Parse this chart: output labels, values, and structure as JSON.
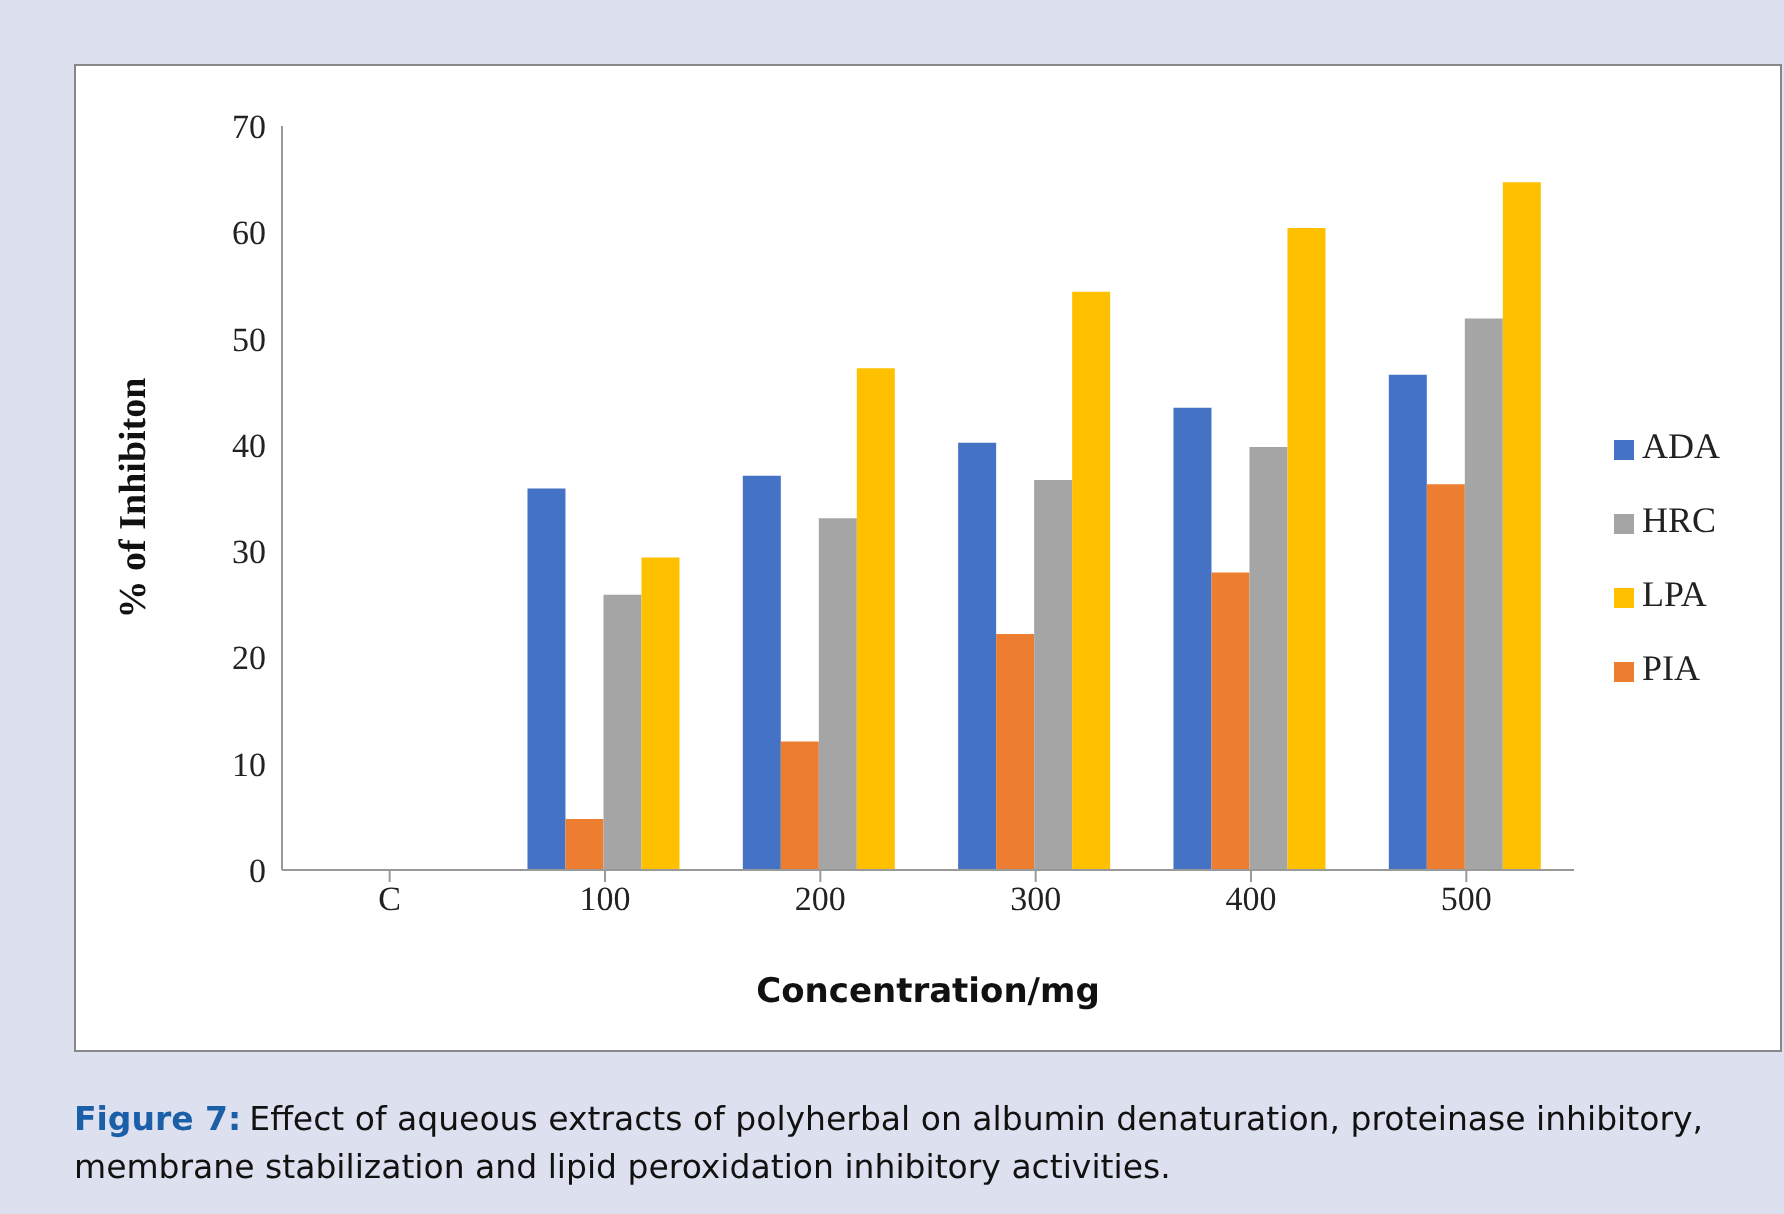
{
  "chart_data": {
    "type": "bar",
    "xlabel": "Concentration/mg",
    "ylabel": "% of Inhibiton",
    "categories": [
      "C",
      "100",
      "200",
      "300",
      "400",
      "500"
    ],
    "series": [
      {
        "name": "ADA",
        "color": "#4472c4",
        "values": [
          null,
          35.9,
          37.1,
          40.2,
          43.5,
          46.6
        ]
      },
      {
        "name": "PIA",
        "color": "#ed7d31",
        "values": [
          null,
          4.8,
          12.1,
          22.2,
          28.0,
          36.3
        ]
      },
      {
        "name": "HRC",
        "color": "#a5a5a5",
        "values": [
          null,
          25.9,
          33.1,
          36.7,
          39.8,
          51.9
        ]
      },
      {
        "name": "LPA",
        "color": "#ffc000",
        "values": [
          null,
          29.4,
          47.2,
          54.4,
          60.4,
          64.7
        ]
      }
    ],
    "ylim": [
      0,
      70
    ],
    "yticks": [
      0,
      10,
      20,
      30,
      40,
      50,
      60,
      70
    ],
    "grid": false,
    "legend": "right",
    "annotations": [
      "Figure 7:",
      "Effect of aqueous extracts of polyherbal on albumin denaturation, proteinase inhibitory, membrane stabilization and lipid peroxidation inhibitory activities."
    ]
  }
}
